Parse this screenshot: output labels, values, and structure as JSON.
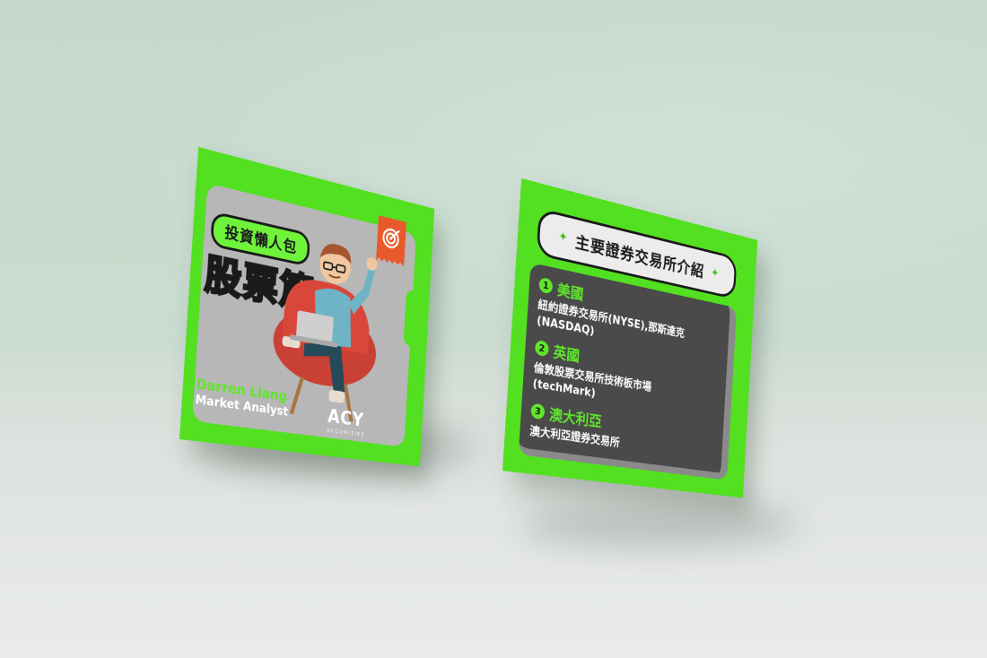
{
  "left_card": {
    "pill_label": "投資懶人包",
    "title": "股票篇",
    "analyst_name": "Darren Liang",
    "analyst_role": "Market Analyst",
    "logo_text": "ACY",
    "logo_subtext": "SECURITIES",
    "icon": "target-icon"
  },
  "right_card": {
    "title": "主要證券交易所介紹",
    "items": [
      {
        "number": "1",
        "country": "美國",
        "detail_line1": "紐約證券交易所(NYSE),那斯達克",
        "detail_line2": "(NASDAQ)"
      },
      {
        "number": "2",
        "country": "英國",
        "detail_line1": "倫敦股票交易所技術板市場",
        "detail_line2": "(techMark)"
      },
      {
        "number": "3",
        "country": "澳大利亞",
        "detail_line1": "澳大利亞證券交易所",
        "detail_line2": ""
      }
    ]
  },
  "colors": {
    "brand_green": "#52e021",
    "accent_orange": "#e85a2b",
    "panel_gray": "#b7b7b7",
    "dark_panel": "#4a4a4a",
    "wall": "#c4d9cc"
  }
}
